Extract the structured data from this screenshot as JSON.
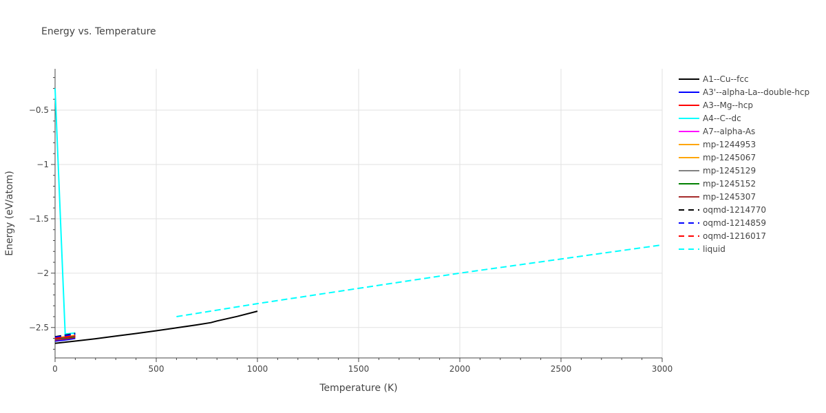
{
  "chart_data": {
    "type": "line",
    "title": "Energy vs. Temperature",
    "xlabel": "Temperature (K)",
    "ylabel": "Energy (eV/atom)",
    "xlim": [
      0,
      3000
    ],
    "ylim": [
      -2.78,
      -0.12
    ],
    "xticks": [
      0,
      500,
      1000,
      1500,
      2000,
      2500,
      3000
    ],
    "yticks": [
      -2.5,
      -2,
      -1.5,
      -1,
      -0.5
    ],
    "grid": true,
    "legend_position": "right",
    "series": [
      {
        "name": "A1--Cu--fcc",
        "color": "#000000",
        "dash": "solid",
        "x": [
          0,
          100,
          200,
          300,
          400,
          500,
          600,
          700,
          770,
          800,
          900,
          1000
        ],
        "y": [
          -2.645,
          -2.625,
          -2.603,
          -2.579,
          -2.555,
          -2.53,
          -2.503,
          -2.476,
          -2.455,
          -2.44,
          -2.398,
          -2.35
        ]
      },
      {
        "name": "A3'--alpha-La--double-hcp",
        "color": "#0000ff",
        "dash": "solid",
        "x": [
          0,
          50,
          100
        ],
        "y": [
          -2.625,
          -2.615,
          -2.6
        ]
      },
      {
        "name": "A3--Mg--hcp",
        "color": "#ff0000",
        "dash": "solid",
        "x": [
          0,
          50,
          100
        ],
        "y": [
          -2.615,
          -2.605,
          -2.59
        ]
      },
      {
        "name": "A4--C--dc",
        "color": "#00ffff",
        "dash": "solid",
        "x": [
          0,
          50,
          100
        ],
        "y": [
          -0.3,
          -2.56,
          -2.55
        ]
      },
      {
        "name": "A7--alpha-As",
        "color": "#ff00ff",
        "dash": "solid",
        "x": [
          0,
          50,
          100
        ],
        "y": [
          -2.61,
          -2.6,
          -2.585
        ]
      },
      {
        "name": "mp-1244953",
        "color": "#ffa500",
        "dash": "solid",
        "x": [
          0,
          50,
          100
        ],
        "y": [
          -2.6,
          -2.59,
          -2.578
        ]
      },
      {
        "name": "mp-1245067",
        "color": "#ffa500",
        "dash": "solid",
        "x": [
          0,
          50,
          100
        ],
        "y": [
          -2.595,
          -2.585,
          -2.573
        ]
      },
      {
        "name": "mp-1245129",
        "color": "#808080",
        "dash": "solid",
        "x": [
          0,
          50,
          100
        ],
        "y": [
          -2.605,
          -2.595,
          -2.582
        ]
      },
      {
        "name": "mp-1245152",
        "color": "#008000",
        "dash": "solid",
        "x": [
          0,
          50,
          100
        ],
        "y": [
          -2.608,
          -2.598,
          -2.585
        ]
      },
      {
        "name": "mp-1245307",
        "color": "#a52a2a",
        "dash": "solid",
        "x": [
          0,
          50,
          100
        ],
        "y": [
          -2.602,
          -2.592,
          -2.58
        ]
      },
      {
        "name": "oqmd-1214770",
        "color": "#000000",
        "dash": "dash",
        "x": [
          0,
          50,
          100
        ],
        "y": [
          -2.585,
          -2.57,
          -2.555
        ]
      },
      {
        "name": "oqmd-1214859",
        "color": "#0000ff",
        "dash": "dash",
        "x": [
          0,
          50,
          100
        ],
        "y": [
          -2.59,
          -2.575,
          -2.56
        ]
      },
      {
        "name": "oqmd-1216017",
        "color": "#ff0000",
        "dash": "dash",
        "x": [
          0,
          50,
          100
        ],
        "y": [
          -2.6,
          -2.588,
          -2.575
        ]
      },
      {
        "name": "liquid",
        "color": "#00ffff",
        "dash": "dash",
        "x": [
          600,
          1000,
          1500,
          2000,
          2500,
          3000
        ],
        "y": [
          -2.4,
          -2.28,
          -2.14,
          -2.0,
          -1.87,
          -1.74
        ]
      }
    ]
  }
}
